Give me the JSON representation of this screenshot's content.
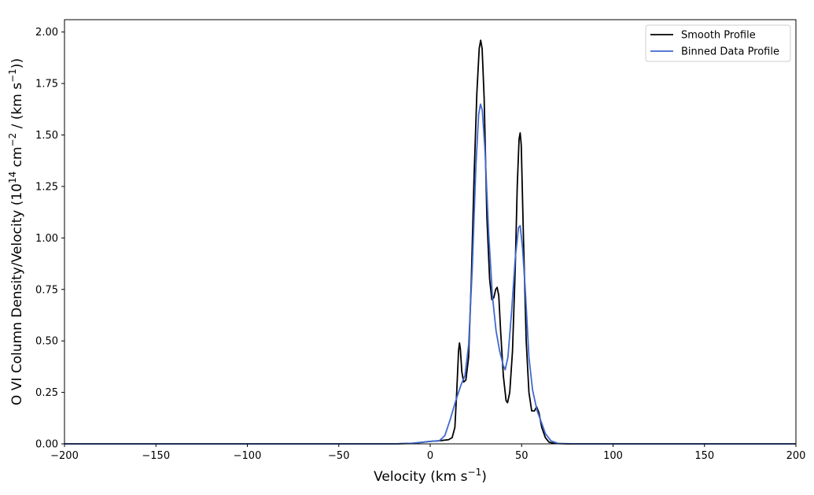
{
  "chart_data": {
    "type": "line",
    "xlabel": "Velocity (km s",
    "xlabel_sup": "−1",
    "xlabel_end": ")",
    "ylabel": "O VI Column Density/Velocity (10",
    "ylabel_sup1": "14",
    "ylabel_mid": " cm",
    "ylabel_sup2": "−2",
    "ylabel_mid2": " / (km s",
    "ylabel_sup3": "−1",
    "ylabel_end": "))",
    "xlim": [
      -200,
      200
    ],
    "ylim": [
      0,
      2.06
    ],
    "grid": false,
    "legend_position": "top-right",
    "x_ticks": [
      -200,
      -150,
      -100,
      -50,
      0,
      50,
      100,
      150,
      200
    ],
    "x_tick_labels": [
      "−200",
      "−150",
      "−100",
      "−50",
      "0",
      "50",
      "100",
      "150",
      "200"
    ],
    "y_ticks": [
      0,
      0.25,
      0.5,
      0.75,
      1.0,
      1.25,
      1.5,
      1.75,
      2.0
    ],
    "y_tick_labels": [
      "0.00",
      "0.25",
      "0.50",
      "0.75",
      "1.00",
      "1.25",
      "1.50",
      "1.75",
      "2.00"
    ],
    "series": [
      {
        "name": "Smooth Profile",
        "color": "#000000",
        "points": [
          [
            -200,
            0
          ],
          [
            -100,
            0
          ],
          [
            -20,
            0
          ],
          [
            -10,
            0.002
          ],
          [
            0,
            0.012
          ],
          [
            5,
            0.015
          ],
          [
            10,
            0.02
          ],
          [
            12,
            0.03
          ],
          [
            13.5,
            0.08
          ],
          [
            14.5,
            0.25
          ],
          [
            15.5,
            0.45
          ],
          [
            16,
            0.49
          ],
          [
            16.5,
            0.46
          ],
          [
            17.3,
            0.35
          ],
          [
            18.3,
            0.3
          ],
          [
            19.5,
            0.31
          ],
          [
            21,
            0.42
          ],
          [
            22.5,
            0.8
          ],
          [
            24,
            1.3
          ],
          [
            25.5,
            1.7
          ],
          [
            26.8,
            1.92
          ],
          [
            27.6,
            1.96
          ],
          [
            28.4,
            1.92
          ],
          [
            29.5,
            1.68
          ],
          [
            31,
            1.1
          ],
          [
            32.5,
            0.8
          ],
          [
            33.7,
            0.7
          ],
          [
            34.8,
            0.71
          ],
          [
            35.8,
            0.75
          ],
          [
            36.6,
            0.76
          ],
          [
            37.5,
            0.72
          ],
          [
            38.5,
            0.55
          ],
          [
            40,
            0.33
          ],
          [
            41.5,
            0.21
          ],
          [
            42.3,
            0.2
          ],
          [
            43.5,
            0.25
          ],
          [
            45,
            0.45
          ],
          [
            46.5,
            0.85
          ],
          [
            47.6,
            1.25
          ],
          [
            48.6,
            1.48
          ],
          [
            49.2,
            1.51
          ],
          [
            49.8,
            1.45
          ],
          [
            51,
            1.0
          ],
          [
            52.5,
            0.5
          ],
          [
            54,
            0.25
          ],
          [
            55.5,
            0.16
          ],
          [
            57,
            0.16
          ],
          [
            58.2,
            0.18
          ],
          [
            59.5,
            0.15
          ],
          [
            61,
            0.08
          ],
          [
            63,
            0.03
          ],
          [
            65,
            0.008
          ],
          [
            68,
            0.002
          ],
          [
            75,
            0
          ],
          [
            100,
            0
          ],
          [
            200,
            0
          ]
        ]
      },
      {
        "name": "Binned Data Profile",
        "color": "#4169cf",
        "points": [
          [
            -200,
            0
          ],
          [
            -100,
            0
          ],
          [
            -20,
            0
          ],
          [
            -10,
            0.003
          ],
          [
            0,
            0.012
          ],
          [
            5,
            0.015
          ],
          [
            8,
            0.04
          ],
          [
            11,
            0.12
          ],
          [
            14,
            0.21
          ],
          [
            17,
            0.29
          ],
          [
            19,
            0.33
          ],
          [
            21,
            0.48
          ],
          [
            23,
            0.85
          ],
          [
            25,
            1.35
          ],
          [
            26.5,
            1.6
          ],
          [
            27.5,
            1.65
          ],
          [
            28.5,
            1.62
          ],
          [
            30,
            1.42
          ],
          [
            32,
            1.02
          ],
          [
            34,
            0.72
          ],
          [
            36,
            0.55
          ],
          [
            38,
            0.45
          ],
          [
            40,
            0.38
          ],
          [
            41,
            0.36
          ],
          [
            42.5,
            0.42
          ],
          [
            44.5,
            0.64
          ],
          [
            46.5,
            0.9
          ],
          [
            48.3,
            1.05
          ],
          [
            49.2,
            1.06
          ],
          [
            50.5,
            0.95
          ],
          [
            52,
            0.75
          ],
          [
            54,
            0.42
          ],
          [
            56,
            0.26
          ],
          [
            58.5,
            0.16
          ],
          [
            61,
            0.1
          ],
          [
            63,
            0.05
          ],
          [
            66,
            0.015
          ],
          [
            70,
            0.002
          ],
          [
            80,
            0
          ],
          [
            200,
            0
          ]
        ]
      }
    ]
  }
}
